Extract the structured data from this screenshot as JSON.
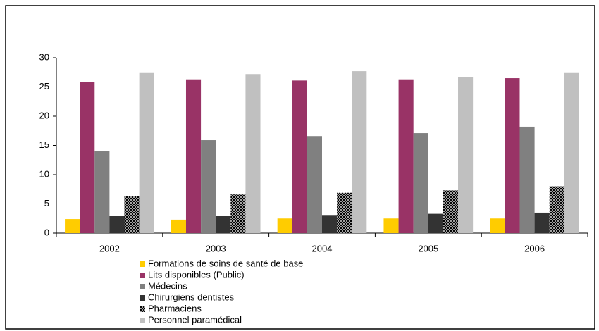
{
  "chart_data": {
    "type": "bar",
    "categories": [
      "2002",
      "2003",
      "2004",
      "2005",
      "2006"
    ],
    "series": [
      {
        "name": "Formations de soins de  santé de base",
        "color": "#ffcc00",
        "values": [
          2.4,
          2.3,
          2.5,
          2.5,
          2.5
        ]
      },
      {
        "name": "Lits disponibles (Public)",
        "color": "#993366",
        "values": [
          25.8,
          26.3,
          26.1,
          26.3,
          26.5
        ]
      },
      {
        "name": "Médecins",
        "color": "#808080",
        "values": [
          14.0,
          15.9,
          16.6,
          17.1,
          18.2
        ]
      },
      {
        "name": "Chirurgiens  dentistes",
        "color": "#333333",
        "values": [
          2.9,
          3.0,
          3.1,
          3.3,
          3.5
        ]
      },
      {
        "name": "Pharmaciens",
        "color": "#000000",
        "pattern": "hatch",
        "values": [
          6.3,
          6.6,
          6.9,
          7.3,
          8.0
        ]
      },
      {
        "name": "Personnel  paramédical",
        "color": "#c0c0c0",
        "values": [
          27.5,
          27.2,
          27.7,
          26.7,
          27.5
        ]
      }
    ],
    "ylim": [
      0,
      30
    ],
    "yticks": [
      0,
      5,
      10,
      15,
      20,
      25,
      30
    ],
    "grid": false,
    "legend": "bottom"
  }
}
